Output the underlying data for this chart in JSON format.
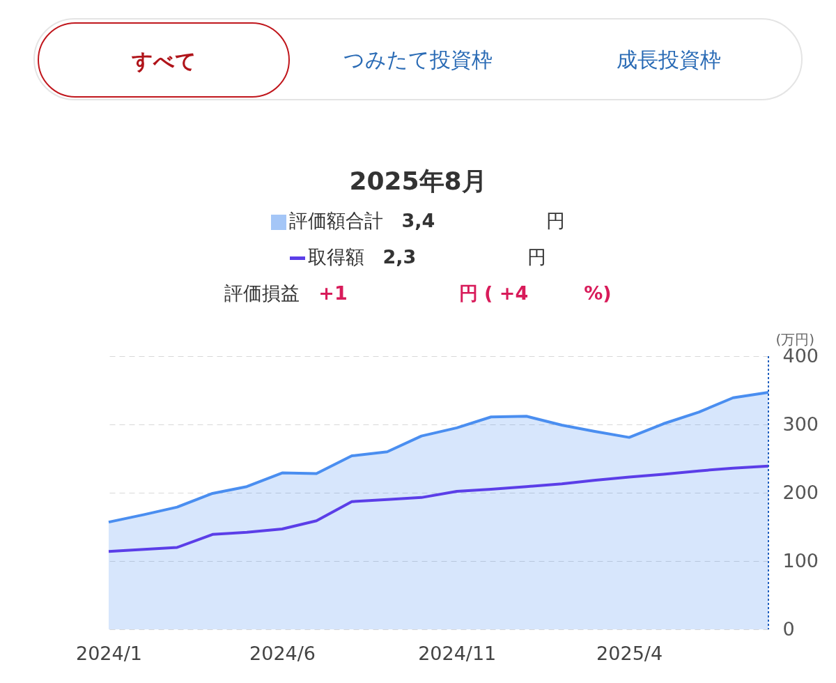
{
  "chart_data": {
    "type": "line",
    "title": "2025年8月",
    "ylabel": "(万円)",
    "annotations": [
      "すべて",
      "つみたて投資枠",
      "成長投資枠",
      "3,4",
      "円",
      "2,3",
      "円",
      "評価損益",
      "+1",
      "円 ( +4",
      "%)"
    ],
    "x": [
      "2024-01",
      "2024-02",
      "2024-03",
      "2024-04",
      "2024-05",
      "2024-06",
      "2024-07",
      "2024-08",
      "2024-09",
      "2024-10",
      "2024-11",
      "2024-12",
      "2025-01",
      "2025-02",
      "2025-03",
      "2025-04",
      "2025-05",
      "2025-06",
      "2025-07",
      "2025-08"
    ],
    "series": [
      {
        "name": "評価額合計",
        "type": "area",
        "color": "#4a8ef0",
        "values": [
          157,
          168,
          179,
          199,
          209,
          229,
          228,
          254,
          260,
          283,
          295,
          311,
          312,
          299,
          290,
          281,
          301,
          318,
          339,
          347
        ]
      },
      {
        "name": "取得額",
        "color": "#5b3ee8",
        "values": [
          114,
          117,
          120,
          139,
          142,
          147,
          159,
          187,
          190,
          193,
          202,
          205,
          209,
          213,
          218,
          223,
          227,
          232,
          236,
          239
        ]
      }
    ],
    "xlim": [
      "2024-01",
      "2025-08"
    ],
    "xticks": [
      {
        "value": "2024-01",
        "label": "2024/1"
      },
      {
        "value": "2024-06",
        "label": "2024/6"
      },
      {
        "value": "2024-11",
        "label": "2024/11"
      },
      {
        "value": "2025-04",
        "label": "2025/4"
      }
    ],
    "ylim": [
      0,
      400
    ],
    "yticks": [
      0,
      100,
      200,
      300,
      400
    ],
    "grid": "y",
    "legend": "top",
    "marker": "none",
    "line_style": "solid",
    "ref_lines": [
      {
        "axis": "x",
        "value": "2025-08",
        "color": "#1f5fbf",
        "line_style": "dotted"
      }
    ]
  }
}
